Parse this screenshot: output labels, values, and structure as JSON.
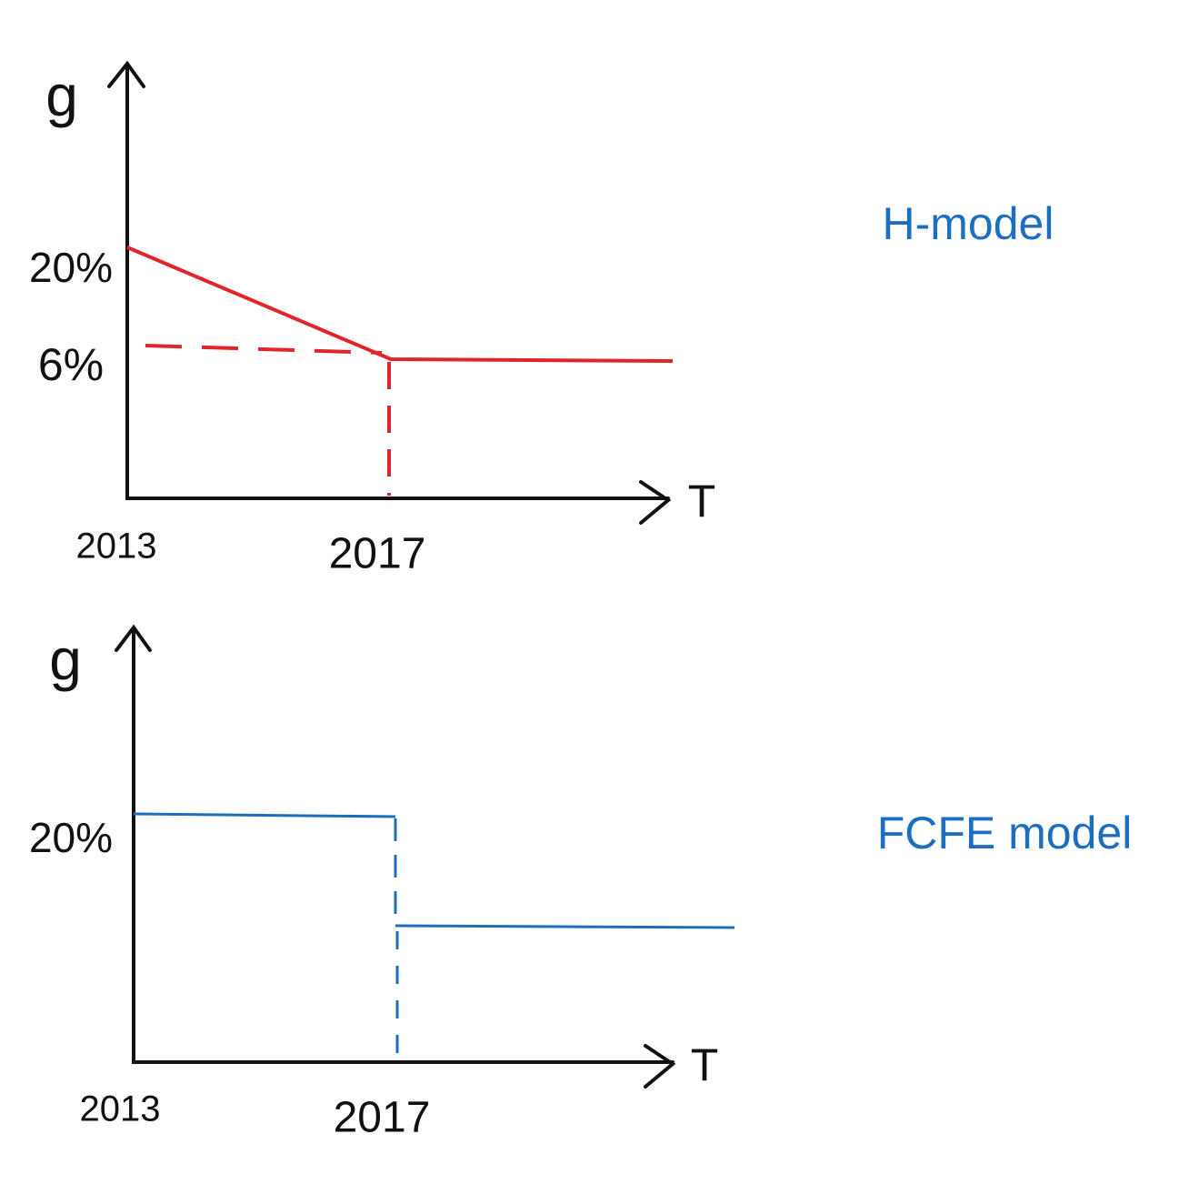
{
  "panels": [
    {
      "y_label": "g",
      "x_label": "T",
      "y_marks": [
        "20%",
        "6%"
      ],
      "x_marks": [
        "2013",
        "2017"
      ],
      "title": "H-model"
    },
    {
      "y_label": "g",
      "x_label": "T",
      "y_marks": [
        "20%"
      ],
      "x_marks": [
        "2013",
        "2017"
      ],
      "title": "FCFE model"
    }
  ]
}
